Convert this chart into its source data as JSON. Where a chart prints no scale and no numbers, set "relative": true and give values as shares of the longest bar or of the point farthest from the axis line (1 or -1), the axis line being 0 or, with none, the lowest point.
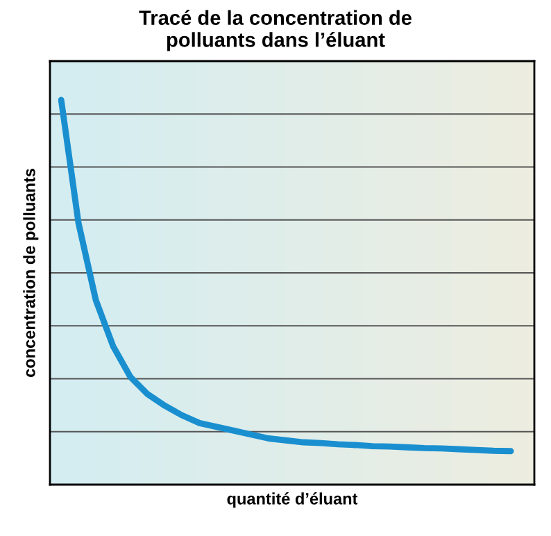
{
  "chart_data": {
    "type": "line",
    "title": "Tracé de la concentration de\npolluants dans l’éluant",
    "xlabel": "quantité d’éluant",
    "ylabel": "concentration de polluants",
    "relative": true,
    "grid": "y",
    "legend": false,
    "marker": "none",
    "line_style": "solid",
    "categories": [
      null,
      null,
      null,
      null,
      null,
      null,
      null,
      null,
      null,
      null,
      null,
      null,
      null,
      null,
      null,
      null,
      null,
      null,
      null,
      null,
      null,
      null,
      null,
      null,
      null,
      null,
      null
    ],
    "series": [
      {
        "color": "#1a8fd0",
        "values": [
          1.0,
          0.68,
          0.48,
          0.36,
          0.28,
          0.235,
          0.205,
          0.18,
          0.16,
          0.15,
          0.14,
          0.13,
          0.12,
          0.115,
          0.11,
          0.108,
          0.105,
          0.103,
          0.1,
          0.099,
          0.097,
          0.095,
          0.094,
          0.092,
          0.09,
          0.088,
          0.087
        ]
      }
    ]
  }
}
